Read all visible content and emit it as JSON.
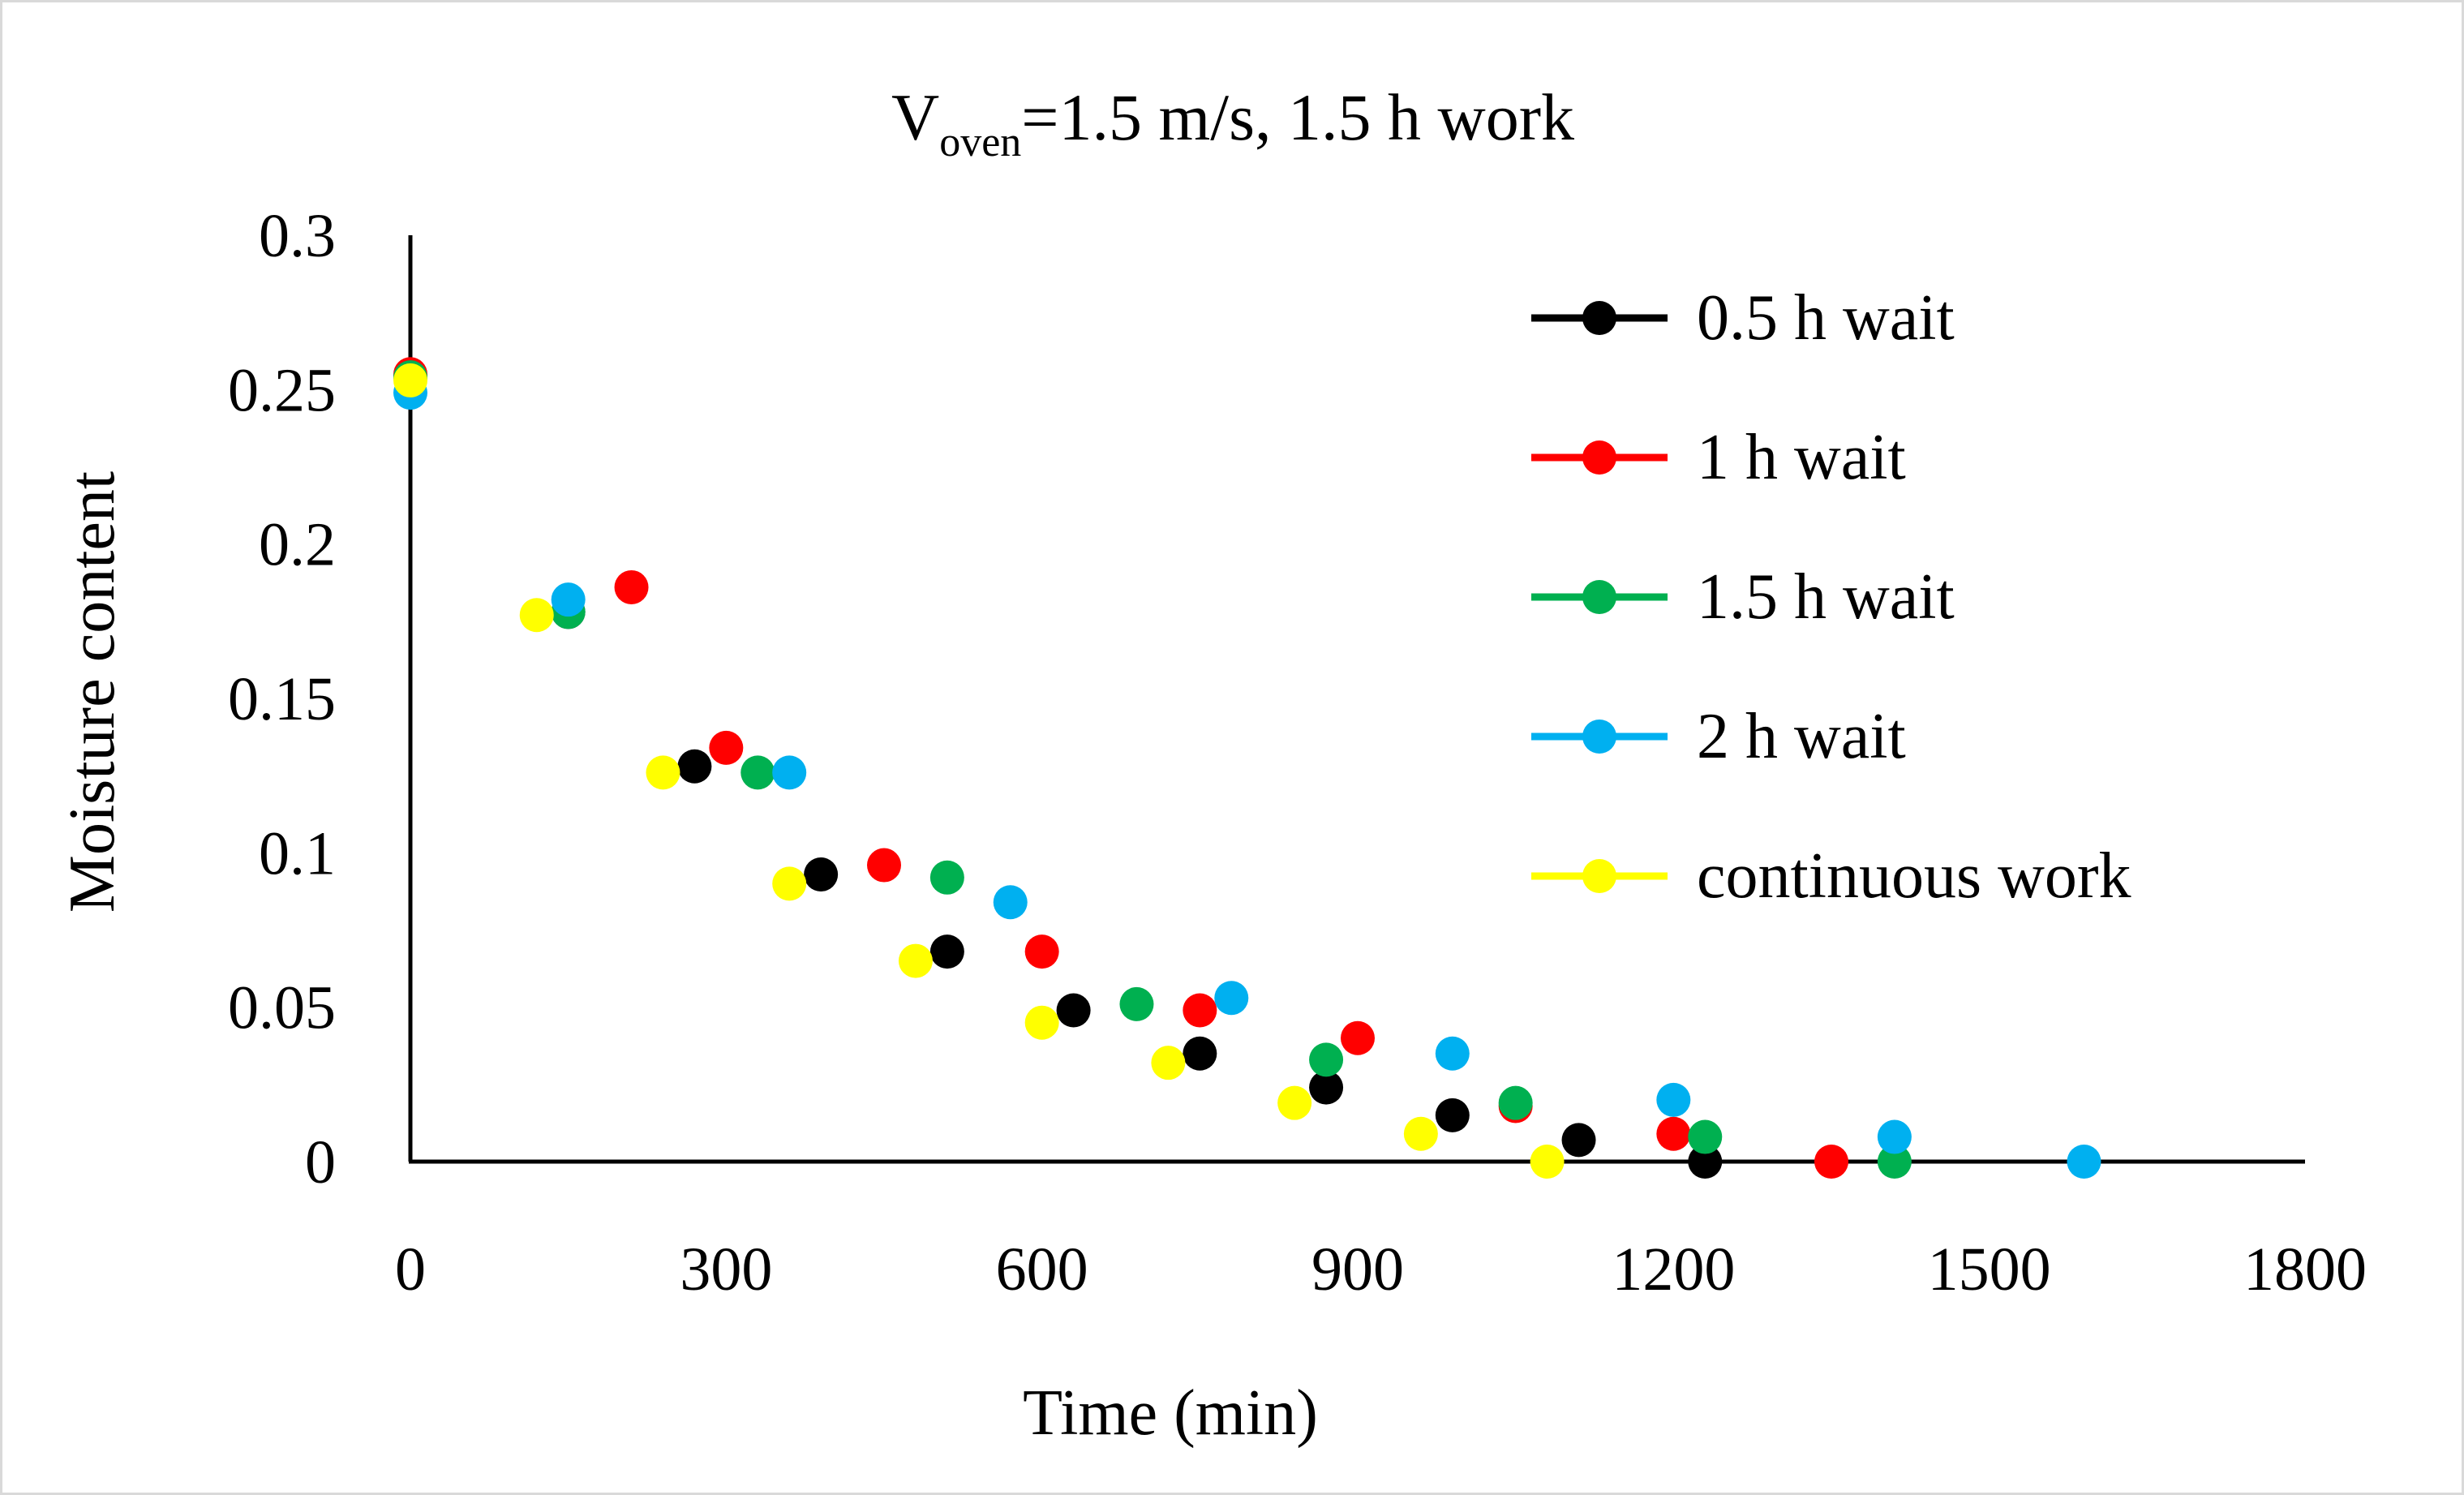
{
  "chart_data": {
    "type": "scatter",
    "title": {
      "prefix": "V",
      "subscript": "oven",
      "suffix": "=1.5 m/s, 1.5 h work"
    },
    "xlabel": "Time (min)",
    "ylabel": "Moisture content",
    "xlim": [
      0,
      1800
    ],
    "ylim": [
      0,
      0.3
    ],
    "xticks": [
      0,
      300,
      600,
      900,
      1200,
      1500,
      1800
    ],
    "yticks": [
      0,
      0.05,
      0.1,
      0.15,
      0.2,
      0.25,
      0.3
    ],
    "xtick_labels": [
      "0",
      "300",
      "600",
      "900",
      "1200",
      "1500",
      "1800"
    ],
    "ytick_labels": [
      "0",
      "0.05",
      "0.1",
      "0.15",
      "0.2",
      "0.25",
      "0.3"
    ],
    "grid": false,
    "legend_position": "top-right",
    "series": [
      {
        "name": "0.5 h wait",
        "color": "#000000",
        "x": [
          0,
          150,
          270,
          390,
          510,
          630,
          750,
          870,
          990,
          1110,
          1230
        ],
        "y": [
          0.254,
          0.178,
          0.128,
          0.093,
          0.068,
          0.049,
          0.035,
          0.024,
          0.015,
          0.007,
          0.0
        ]
      },
      {
        "name": "1 h wait",
        "color": "#ff0000",
        "x": [
          0,
          210,
          300,
          450,
          600,
          750,
          900,
          1050,
          1200,
          1350
        ],
        "y": [
          0.255,
          0.186,
          0.134,
          0.096,
          0.068,
          0.049,
          0.04,
          0.018,
          0.009,
          0.0
        ]
      },
      {
        "name": "1.5 h wait",
        "color": "#00b050",
        "x": [
          0,
          150,
          330,
          510,
          690,
          870,
          1050,
          1230,
          1410
        ],
        "y": [
          0.254,
          0.178,
          0.126,
          0.092,
          0.051,
          0.033,
          0.019,
          0.008,
          0.0
        ]
      },
      {
        "name": "2 h wait",
        "color": "#00b0f0",
        "x": [
          0,
          150,
          360,
          570,
          780,
          990,
          1200,
          1410,
          1590
        ],
        "y": [
          0.249,
          0.182,
          0.126,
          0.084,
          0.053,
          0.035,
          0.02,
          0.008,
          0.0
        ]
      },
      {
        "name": "continuous work",
        "color": "#ffff00",
        "x": [
          0,
          120,
          240,
          360,
          480,
          600,
          720,
          840,
          960,
          1080
        ],
        "y": [
          0.253,
          0.177,
          0.126,
          0.09,
          0.065,
          0.045,
          0.032,
          0.019,
          0.009,
          0.0
        ]
      }
    ]
  }
}
